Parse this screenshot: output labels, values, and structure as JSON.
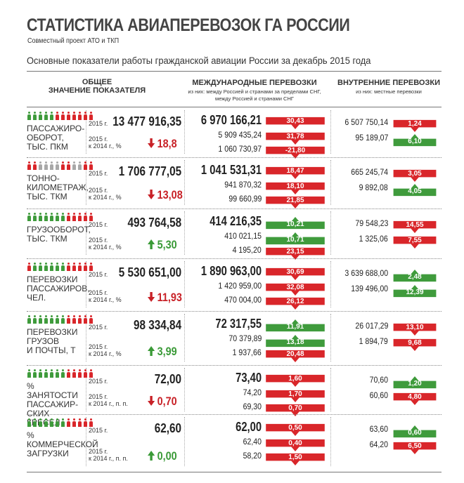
{
  "header": {
    "title": "СТАТИСТИКА АВИАПЕРЕВОЗОК ГА РОССИИ",
    "subtitle": "Совместный проект АТО и ТКП",
    "headline": "Основные показатели работы гражданской авиации России за декабрь 2015 года"
  },
  "columns": {
    "general": "ОБЩЕЕ\nЗНАЧЕНИЕ ПОКАЗАТЕЛЯ",
    "intl": "МЕЖДУНАРОДНЫЕ ПЕРЕВОЗКИ",
    "intl_sub": "из них: между Россией и странами за пределами СНГ,\nмежду Россией и странами СНГ",
    "dom": "ВНУТРЕННИЕ ПЕРЕВОЗКИ",
    "dom_sub": "из них: местные перевозки"
  },
  "colors": {
    "green": "#3f9b3c",
    "red": "#d9262a",
    "grey": "#a8a8a8"
  },
  "rows": [
    {
      "label": "ПАССАЖИРО-\nОБОРОТ,\nТЫС. ПКМ",
      "icons": [
        "g",
        "g",
        "g",
        "g",
        "g",
        "r",
        "r",
        "r",
        "r",
        "r",
        "r",
        "r"
      ],
      "year_label": "2015 г.",
      "value": "13 477 916,35",
      "cmp_label": "2015 г.\nк 2014 г., %",
      "change": "18,8",
      "dir": "down",
      "intl": [
        {
          "v": "6 970 166,21",
          "p": "30,43",
          "d": "down"
        },
        {
          "v": "5 909 435,24",
          "p": "31,78",
          "d": "down"
        },
        {
          "v": "1 060 730,97",
          "p": "-21,80",
          "d": "down"
        }
      ],
      "dom": [
        {
          "v": "6 507 750,14",
          "p": "1,24",
          "d": "down"
        },
        {
          "v": "95 189,07",
          "p": "6,10",
          "d": "up"
        }
      ]
    },
    {
      "label": "ТОННО-\nКИЛОМЕТРАЖ,\nТЫС. ТКМ",
      "icons": [
        "r",
        "r",
        "gr",
        "gr",
        "gr",
        "gr",
        "r",
        "r",
        "gr",
        "gr",
        "r",
        "r"
      ],
      "year_label": "2015 г.",
      "value": "1 706 777,05",
      "cmp_label": "2015 г.\nк 2014 г., %",
      "change": "13,08",
      "dir": "down",
      "intl": [
        {
          "v": "1 041 531,31",
          "p": "18,47",
          "d": "down"
        },
        {
          "v": "941 870,32",
          "p": "18,10",
          "d": "down"
        },
        {
          "v": "99 660,99",
          "p": "21,85",
          "d": "down"
        }
      ],
      "dom": [
        {
          "v": "665 245,74",
          "p": "3,05",
          "d": "down"
        },
        {
          "v": "9 892,08",
          "p": "4,05",
          "d": "up"
        }
      ]
    },
    {
      "label": "ГРУЗООБОРОТ,\nТЫС. ТКМ",
      "icons": [
        "g",
        "g",
        "g",
        "g",
        "g",
        "g",
        "g",
        "r",
        "r",
        "r",
        "r",
        "r"
      ],
      "year_label": "2015 г.",
      "value": "493 764,58",
      "cmp_label": "2015 г.\nк 2014 г., %",
      "change": "5,30",
      "dir": "up",
      "intl": [
        {
          "v": "414 216,35",
          "p": "10,21",
          "d": "up"
        },
        {
          "v": "410 021,15",
          "p": "10,71",
          "d": "up"
        },
        {
          "v": "4 195,20",
          "p": "23,15",
          "d": "down"
        }
      ],
      "dom": [
        {
          "v": "79 548,23",
          "p": "14,55",
          "d": "down"
        },
        {
          "v": "1 325,06",
          "p": "7,55",
          "d": "down"
        }
      ]
    },
    {
      "label": "ПЕРЕВОЗКИ\nПАССАЖИРОВ,\nЧЕЛ.",
      "icons": [
        "r",
        "g",
        "g",
        "g",
        "g",
        "g",
        "g",
        "r",
        "r",
        "r",
        "r",
        "r"
      ],
      "year_label": "2015 г.",
      "value": "5 530 651,00",
      "cmp_label": "2015 г.\nк 2014 г., %",
      "change": "11,93",
      "dir": "down",
      "intl": [
        {
          "v": "1 890 963,00",
          "p": "30,69",
          "d": "down"
        },
        {
          "v": "1 420 959,00",
          "p": "32,08",
          "d": "down"
        },
        {
          "v": "470 004,00",
          "p": "26,12",
          "d": "down"
        }
      ],
      "dom": [
        {
          "v": "3 639 688,00",
          "p": "2,48",
          "d": "up"
        },
        {
          "v": "139 496,00",
          "p": "12,39",
          "d": "up"
        }
      ]
    },
    {
      "label": "ПЕРЕВОЗКИ\nГРУЗОВ\nИ ПОЧТЫ, Т",
      "icons": [
        "g",
        "g",
        "g",
        "g",
        "g",
        "g",
        "g",
        "r",
        "r",
        "r",
        "r",
        "r"
      ],
      "year_label": "2015 г.",
      "value": "98 334,84",
      "cmp_label": "2015 г.\nк 2014 г., %",
      "change": "3,99",
      "dir": "up",
      "intl": [
        {
          "v": "72 317,55",
          "p": "11,91",
          "d": "up"
        },
        {
          "v": "70 379,89",
          "p": "13,18",
          "d": "up"
        },
        {
          "v": "1 937,66",
          "p": "20,48",
          "d": "down"
        }
      ],
      "dom": [
        {
          "v": "26 017,29",
          "p": "13,10",
          "d": "down"
        },
        {
          "v": "1 894,79",
          "p": "9,68",
          "d": "down"
        }
      ]
    },
    {
      "label": "% ЗАНЯТОСТИ\nПАССАЖИР-\nСКИХ КРЕСЕЛ",
      "icons": [
        "g",
        "g",
        "g",
        "g",
        "g",
        "g",
        "g",
        "r",
        "r",
        "r",
        "r",
        "r"
      ],
      "year_label": "2015 г.",
      "value": "72,00",
      "cmp_label": "2015 г.\nк 2014 г., п. п.",
      "change": "0,70",
      "dir": "down",
      "intl": [
        {
          "v": "73,40",
          "p": "1,60",
          "d": "down"
        },
        {
          "v": "74,20",
          "p": "1,70",
          "d": "down"
        },
        {
          "v": "69,30",
          "p": "0,70",
          "d": "down"
        }
      ],
      "dom": [
        {
          "v": "70,60",
          "p": "1,20",
          "d": "up"
        },
        {
          "v": "60,60",
          "p": "4,80",
          "d": "down"
        }
      ]
    },
    {
      "label": "%\nКОММЕРЧЕСКОЙ\nЗАГРУЗКИ",
      "icons": [
        "g",
        "g",
        "g",
        "g",
        "g",
        "g",
        "g",
        "r",
        "r",
        "r",
        "r",
        "r"
      ],
      "year_label": "2015 г.",
      "value": "62,60",
      "cmp_label": "2015 г.\nк 2014 г., п. п.",
      "change": "0,00",
      "dir": "up",
      "intl": [
        {
          "v": "62,00",
          "p": "0,50",
          "d": "down"
        },
        {
          "v": "62,40",
          "p": "0,40",
          "d": "down"
        },
        {
          "v": "58,20",
          "p": "1,50",
          "d": "down"
        }
      ],
      "dom": [
        {
          "v": "63,60",
          "p": "0,60",
          "d": "up"
        },
        {
          "v": "64,20",
          "p": "6,50",
          "d": "down"
        }
      ]
    }
  ]
}
